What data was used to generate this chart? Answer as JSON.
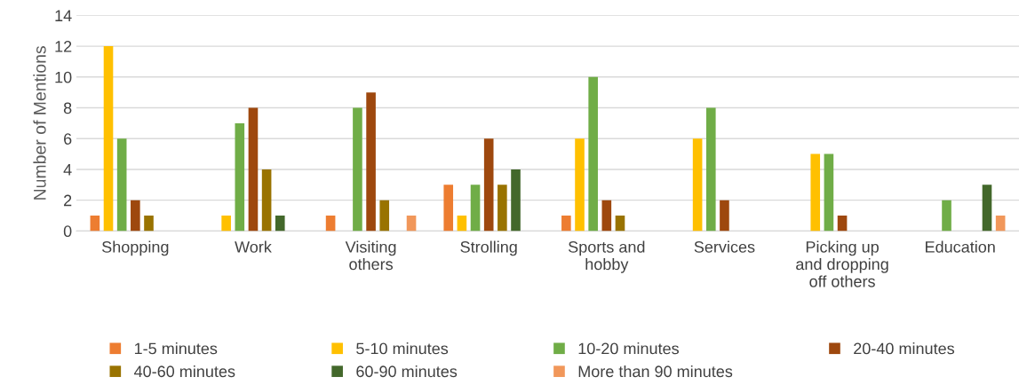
{
  "chart_data": {
    "type": "bar",
    "ylabel": "Number of Mentions",
    "categories": [
      "Shopping",
      "Work",
      "Visiting others",
      "Strolling",
      "Sports and hobby",
      "Services",
      "Picking up and dropping off others",
      "Education"
    ],
    "series": [
      {
        "name": "1-5 minutes",
        "color": "#ed7d31",
        "values": [
          1,
          0,
          1,
          3,
          1,
          0,
          0,
          0
        ]
      },
      {
        "name": "5-10 minutes",
        "color": "#ffc000",
        "values": [
          12,
          1,
          0,
          1,
          6,
          6,
          5,
          0
        ]
      },
      {
        "name": "10-20 minutes",
        "color": "#70ad47",
        "values": [
          6,
          7,
          8,
          3,
          10,
          8,
          5,
          2
        ]
      },
      {
        "name": "20-40 minutes",
        "color": "#9e480e",
        "values": [
          2,
          8,
          9,
          6,
          2,
          2,
          1,
          0
        ]
      },
      {
        "name": "40-60 minutes",
        "color": "#997300",
        "values": [
          1,
          4,
          2,
          3,
          1,
          0,
          0,
          0
        ]
      },
      {
        "name": "60-90 minutes",
        "color": "#43682b",
        "values": [
          0,
          1,
          0,
          4,
          0,
          0,
          0,
          3
        ]
      },
      {
        "name": "More than 90 minutes",
        "color": "#f1975a",
        "values": [
          0,
          0,
          1,
          0,
          0,
          0,
          0,
          1
        ]
      }
    ],
    "ylim": [
      0,
      14
    ],
    "yticks": [
      0,
      2,
      4,
      6,
      8,
      10,
      12,
      14
    ],
    "grid": "y",
    "legend": "bottom"
  }
}
